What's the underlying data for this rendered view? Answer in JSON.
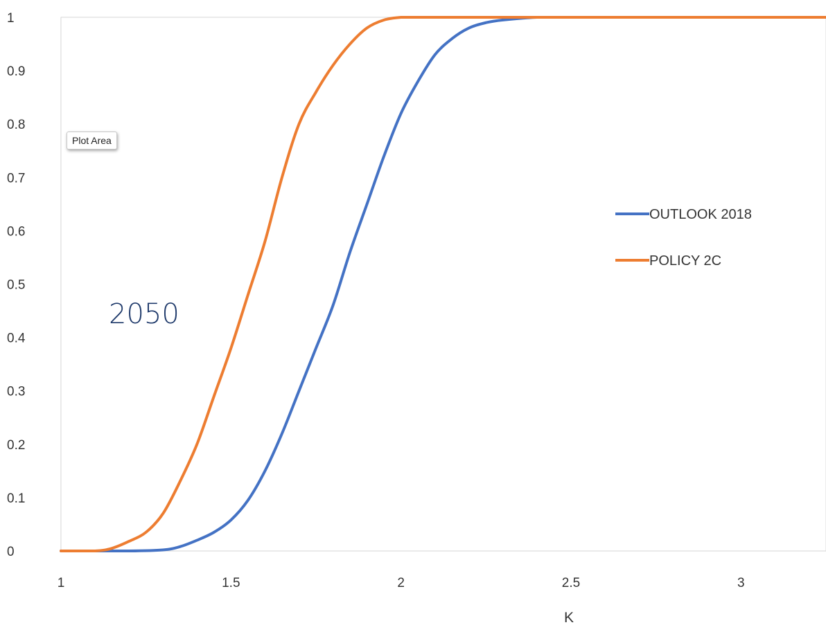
{
  "chart_data": {
    "type": "line",
    "title": "",
    "xlabel": "K",
    "ylabel": "",
    "xlim": [
      1,
      3.25
    ],
    "ylim": [
      0,
      1
    ],
    "xticks": [
      1,
      1.5,
      2,
      2.5,
      3
    ],
    "xtick_labels": [
      "1",
      "1.5",
      "2",
      "2.5",
      "3"
    ],
    "yticks": [
      0,
      0.1,
      0.2,
      0.3,
      0.4,
      0.5,
      0.6,
      0.7,
      0.8,
      0.9,
      1
    ],
    "ytick_labels": [
      "0",
      "0.1",
      "0.2",
      "0.3",
      "0.4",
      "0.5",
      "0.6",
      "0.7",
      "0.8",
      "0.9",
      "1"
    ],
    "grid": true,
    "legend_position": "right",
    "annotation": "2050",
    "tooltip_text": "Plot Area",
    "series": [
      {
        "name": "OUTLOOK 2018",
        "color": "#4472c4",
        "x": [
          1.0,
          1.2,
          1.3,
          1.35,
          1.4,
          1.45,
          1.5,
          1.55,
          1.6,
          1.65,
          1.7,
          1.75,
          1.8,
          1.85,
          1.9,
          1.95,
          2.0,
          2.05,
          2.1,
          2.15,
          2.2,
          2.25,
          2.3,
          2.4,
          2.5,
          3.0,
          3.25
        ],
        "y": [
          0.0,
          0.0,
          0.002,
          0.008,
          0.02,
          0.035,
          0.058,
          0.095,
          0.15,
          0.22,
          0.3,
          0.38,
          0.46,
          0.56,
          0.65,
          0.74,
          0.82,
          0.88,
          0.93,
          0.96,
          0.98,
          0.99,
          0.995,
          1.0,
          1.0,
          1.0,
          1.0
        ]
      },
      {
        "name": "POLICY 2C",
        "color": "#ed7d31",
        "x": [
          1.0,
          1.1,
          1.15,
          1.2,
          1.25,
          1.3,
          1.35,
          1.4,
          1.45,
          1.5,
          1.55,
          1.6,
          1.65,
          1.7,
          1.75,
          1.8,
          1.85,
          1.9,
          1.95,
          2.0,
          2.05,
          2.1,
          2.5,
          3.0,
          3.25
        ],
        "y": [
          0.0,
          0.0,
          0.005,
          0.018,
          0.035,
          0.07,
          0.13,
          0.2,
          0.29,
          0.38,
          0.48,
          0.58,
          0.7,
          0.8,
          0.86,
          0.91,
          0.95,
          0.98,
          0.995,
          1.0,
          1.0,
          1.0,
          1.0,
          1.0,
          1.0
        ]
      }
    ]
  }
}
